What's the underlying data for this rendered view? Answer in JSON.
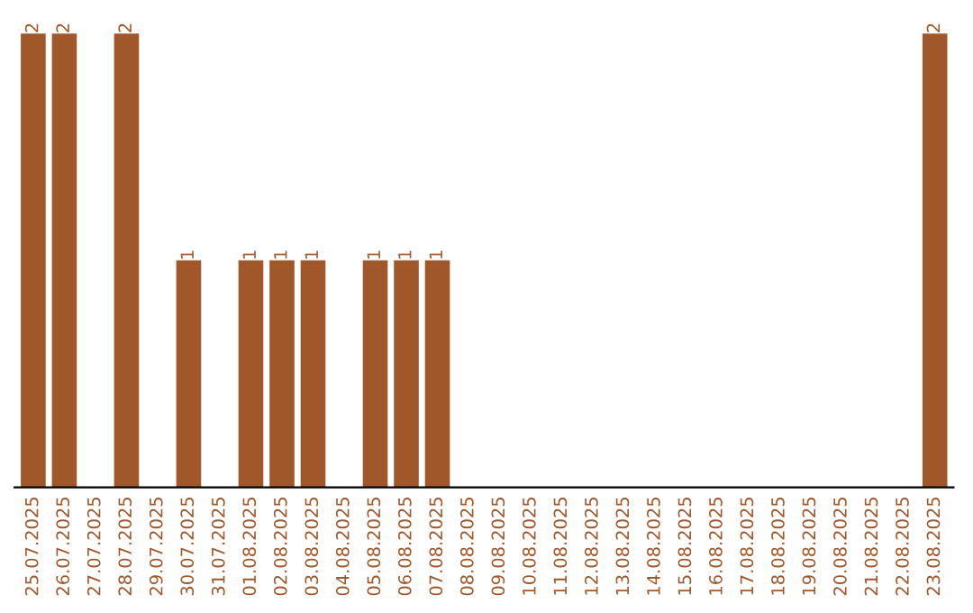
{
  "chart_data": {
    "type": "bar",
    "categories": [
      "25.07.2025",
      "26.07.2025",
      "27.07.2025",
      "28.07.2025",
      "29.07.2025",
      "30.07.2025",
      "31.07.2025",
      "01.08.2025",
      "02.08.2025",
      "03.08.2025",
      "04.08.2025",
      "05.08.2025",
      "06.08.2025",
      "07.08.2025",
      "08.08.2025",
      "09.08.2025",
      "10.08.2025",
      "11.08.2025",
      "12.08.2025",
      "13.08.2025",
      "14.08.2025",
      "15.08.2025",
      "16.08.2025",
      "17.08.2025",
      "18.08.2025",
      "19.08.2025",
      "20.08.2025",
      "21.08.2025",
      "22.08.2025",
      "23.08.2025"
    ],
    "values": [
      2,
      2,
      0,
      2,
      0,
      1,
      0,
      1,
      1,
      1,
      0,
      1,
      1,
      1,
      0,
      0,
      0,
      0,
      0,
      0,
      0,
      0,
      0,
      0,
      0,
      0,
      0,
      0,
      0,
      2
    ],
    "value_labels": [
      "2",
      "2",
      null,
      "2",
      null,
      "1",
      null,
      "1",
      "1",
      "1",
      null,
      "1",
      "1",
      "1",
      null,
      null,
      null,
      null,
      null,
      null,
      null,
      null,
      null,
      null,
      null,
      null,
      null,
      null,
      null,
      "2"
    ],
    "color": "#a0572a",
    "grid": false,
    "legend": false
  }
}
